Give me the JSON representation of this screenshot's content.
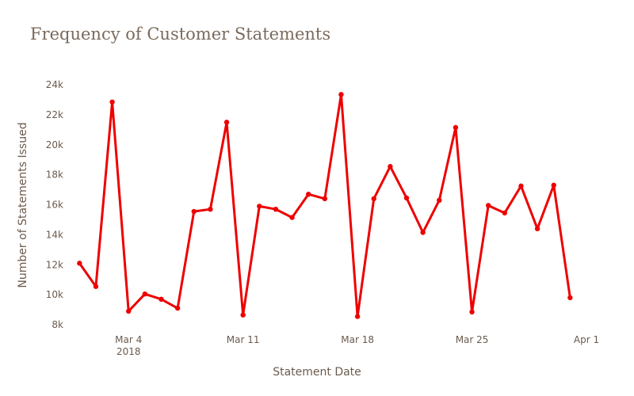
{
  "chart_data": {
    "type": "line",
    "title": "Frequency of Customer Statements",
    "xlabel": "Statement Date",
    "ylabel": "Number of Statements Issued",
    "ylim": [
      8000,
      24000
    ],
    "yticks": [
      8000,
      10000,
      12000,
      14000,
      16000,
      18000,
      20000,
      22000,
      24000
    ],
    "ytick_labels": [
      "8k",
      "10k",
      "12k",
      "14k",
      "16k",
      "18k",
      "20k",
      "22k",
      "24k"
    ],
    "xlim": [
      "2018-02-28T12:00",
      "2018-04-01"
    ],
    "xticks": [
      {
        "date": "2018-03-04",
        "label": "Mar 4",
        "sublabel": "2018"
      },
      {
        "date": "2018-03-11",
        "label": "Mar 11",
        "sublabel": ""
      },
      {
        "date": "2018-03-18",
        "label": "Mar 18",
        "sublabel": ""
      },
      {
        "date": "2018-03-25",
        "label": "Mar 25",
        "sublabel": ""
      },
      {
        "date": "2018-04-01",
        "label": "Apr 1",
        "sublabel": ""
      }
    ],
    "grid": false,
    "line_color": "#ee0000",
    "series": [
      {
        "name": "",
        "x": [
          "2018-03-01",
          "2018-03-02",
          "2018-03-03",
          "2018-03-04",
          "2018-03-05",
          "2018-03-06",
          "2018-03-07",
          "2018-03-08",
          "2018-03-09",
          "2018-03-10",
          "2018-03-11",
          "2018-03-12",
          "2018-03-13",
          "2018-03-14",
          "2018-03-15",
          "2018-03-16",
          "2018-03-17",
          "2018-03-18",
          "2018-03-19",
          "2018-03-20",
          "2018-03-21",
          "2018-03-22",
          "2018-03-23",
          "2018-03-24",
          "2018-03-25",
          "2018-03-26",
          "2018-03-27",
          "2018-03-28",
          "2018-03-29",
          "2018-03-30",
          "2018-03-31"
        ],
        "y": [
          12100,
          10550,
          22850,
          8900,
          10050,
          9700,
          9100,
          15550,
          15700,
          21500,
          8650,
          15900,
          15700,
          15150,
          16700,
          16400,
          23350,
          8550,
          16400,
          18550,
          16450,
          14150,
          16300,
          21150,
          8850,
          15950,
          15450,
          17250,
          14400,
          17300,
          9800
        ]
      }
    ]
  }
}
